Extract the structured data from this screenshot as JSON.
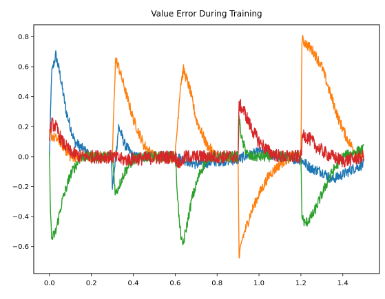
{
  "chart_data": {
    "type": "line",
    "title": "Value Error During Training",
    "xlabel": "",
    "ylabel": "",
    "xlim": [
      -0.075,
      1.575
    ],
    "ylim": [
      -0.78,
      0.88
    ],
    "xticks": [
      0.0,
      0.2,
      0.4,
      0.6,
      0.8,
      1.0,
      1.2,
      1.4
    ],
    "xtick_labels": [
      "0.0",
      "0.2",
      "0.4",
      "0.6",
      "0.8",
      "1.0",
      "1.2",
      "1.4"
    ],
    "yticks": [
      -0.6,
      -0.4,
      -0.2,
      0.0,
      0.2,
      0.4,
      0.6,
      0.8
    ],
    "ytick_labels": [
      "−0.6",
      "−0.4",
      "−0.2",
      "0.0",
      "0.2",
      "0.4",
      "0.6",
      "0.8"
    ],
    "grid": false,
    "legend": "none",
    "series": [
      {
        "color": "#1f77b4",
        "noise": 0.035,
        "points": [
          [
            0.0,
            0.0
          ],
          [
            0.01,
            0.55
          ],
          [
            0.03,
            0.68
          ],
          [
            0.05,
            0.55
          ],
          [
            0.08,
            0.3
          ],
          [
            0.12,
            0.1
          ],
          [
            0.2,
            0.0
          ],
          [
            0.295,
            0.0
          ],
          [
            0.3,
            -0.2
          ],
          [
            0.31,
            -0.1
          ],
          [
            0.33,
            0.2
          ],
          [
            0.36,
            0.08
          ],
          [
            0.4,
            0.0
          ],
          [
            0.6,
            0.0
          ],
          [
            0.7,
            -0.05
          ],
          [
            0.8,
            -0.03
          ],
          [
            0.9,
            -0.02
          ],
          [
            0.93,
            0.0
          ],
          [
            1.0,
            0.03
          ],
          [
            1.1,
            0.0
          ],
          [
            1.2,
            -0.02
          ],
          [
            1.25,
            -0.08
          ],
          [
            1.3,
            -0.1
          ],
          [
            1.35,
            -0.15
          ],
          [
            1.4,
            -0.12
          ],
          [
            1.45,
            -0.08
          ],
          [
            1.5,
            -0.05
          ]
        ]
      },
      {
        "color": "#ff7f0e",
        "noise": 0.035,
        "points": [
          [
            0.0,
            0.15
          ],
          [
            0.05,
            0.1
          ],
          [
            0.1,
            0.0
          ],
          [
            0.3,
            0.0
          ],
          [
            0.315,
            0.65
          ],
          [
            0.33,
            0.6
          ],
          [
            0.36,
            0.45
          ],
          [
            0.4,
            0.25
          ],
          [
            0.45,
            0.08
          ],
          [
            0.5,
            0.0
          ],
          [
            0.6,
            0.0
          ],
          [
            0.625,
            0.48
          ],
          [
            0.64,
            0.58
          ],
          [
            0.67,
            0.45
          ],
          [
            0.7,
            0.25
          ],
          [
            0.75,
            0.08
          ],
          [
            0.8,
            0.0
          ],
          [
            0.9,
            0.0
          ],
          [
            0.905,
            -0.68
          ],
          [
            0.92,
            -0.55
          ],
          [
            0.96,
            -0.38
          ],
          [
            1.0,
            -0.25
          ],
          [
            1.05,
            -0.12
          ],
          [
            1.1,
            -0.05
          ],
          [
            1.15,
            0.0
          ],
          [
            1.2,
            0.0
          ],
          [
            1.205,
            0.78
          ],
          [
            1.22,
            0.76
          ],
          [
            1.26,
            0.7
          ],
          [
            1.3,
            0.6
          ],
          [
            1.34,
            0.42
          ],
          [
            1.38,
            0.25
          ],
          [
            1.42,
            0.12
          ],
          [
            1.46,
            0.03
          ],
          [
            1.5,
            0.0
          ]
        ]
      },
      {
        "color": "#2ca02c",
        "noise": 0.035,
        "points": [
          [
            0.0,
            0.0
          ],
          [
            0.005,
            -0.35
          ],
          [
            0.01,
            -0.55
          ],
          [
            0.03,
            -0.5
          ],
          [
            0.06,
            -0.3
          ],
          [
            0.1,
            -0.12
          ],
          [
            0.15,
            0.0
          ],
          [
            0.3,
            0.0
          ],
          [
            0.315,
            -0.25
          ],
          [
            0.33,
            -0.2
          ],
          [
            0.36,
            -0.1
          ],
          [
            0.4,
            -0.02
          ],
          [
            0.45,
            0.0
          ],
          [
            0.6,
            0.0
          ],
          [
            0.62,
            -0.45
          ],
          [
            0.635,
            -0.6
          ],
          [
            0.65,
            -0.5
          ],
          [
            0.68,
            -0.28
          ],
          [
            0.72,
            -0.1
          ],
          [
            0.76,
            0.0
          ],
          [
            0.9,
            0.0
          ],
          [
            0.905,
            0.25
          ],
          [
            0.92,
            0.1
          ],
          [
            0.95,
            0.0
          ],
          [
            1.2,
            0.0
          ],
          [
            1.205,
            -0.4
          ],
          [
            1.22,
            -0.45
          ],
          [
            1.26,
            -0.38
          ],
          [
            1.3,
            -0.25
          ],
          [
            1.35,
            -0.1
          ],
          [
            1.4,
            0.0
          ],
          [
            1.5,
            0.05
          ]
        ]
      },
      {
        "color": "#d62728",
        "noise": 0.045,
        "points": [
          [
            0.0,
            0.15
          ],
          [
            0.01,
            0.22
          ],
          [
            0.03,
            0.2
          ],
          [
            0.06,
            0.1
          ],
          [
            0.1,
            0.03
          ],
          [
            0.15,
            0.0
          ],
          [
            0.3,
            0.0
          ],
          [
            0.35,
            -0.02
          ],
          [
            0.6,
            0.0
          ],
          [
            0.62,
            -0.05
          ],
          [
            0.65,
            0.0
          ],
          [
            0.9,
            0.0
          ],
          [
            0.905,
            0.35
          ],
          [
            0.93,
            0.3
          ],
          [
            0.96,
            0.2
          ],
          [
            1.0,
            0.1
          ],
          [
            1.05,
            0.03
          ],
          [
            1.1,
            0.0
          ],
          [
            1.2,
            0.0
          ],
          [
            1.21,
            0.15
          ],
          [
            1.24,
            0.12
          ],
          [
            1.28,
            0.06
          ],
          [
            1.32,
            0.02
          ],
          [
            1.4,
            -0.03
          ],
          [
            1.5,
            0.0
          ]
        ]
      }
    ]
  }
}
